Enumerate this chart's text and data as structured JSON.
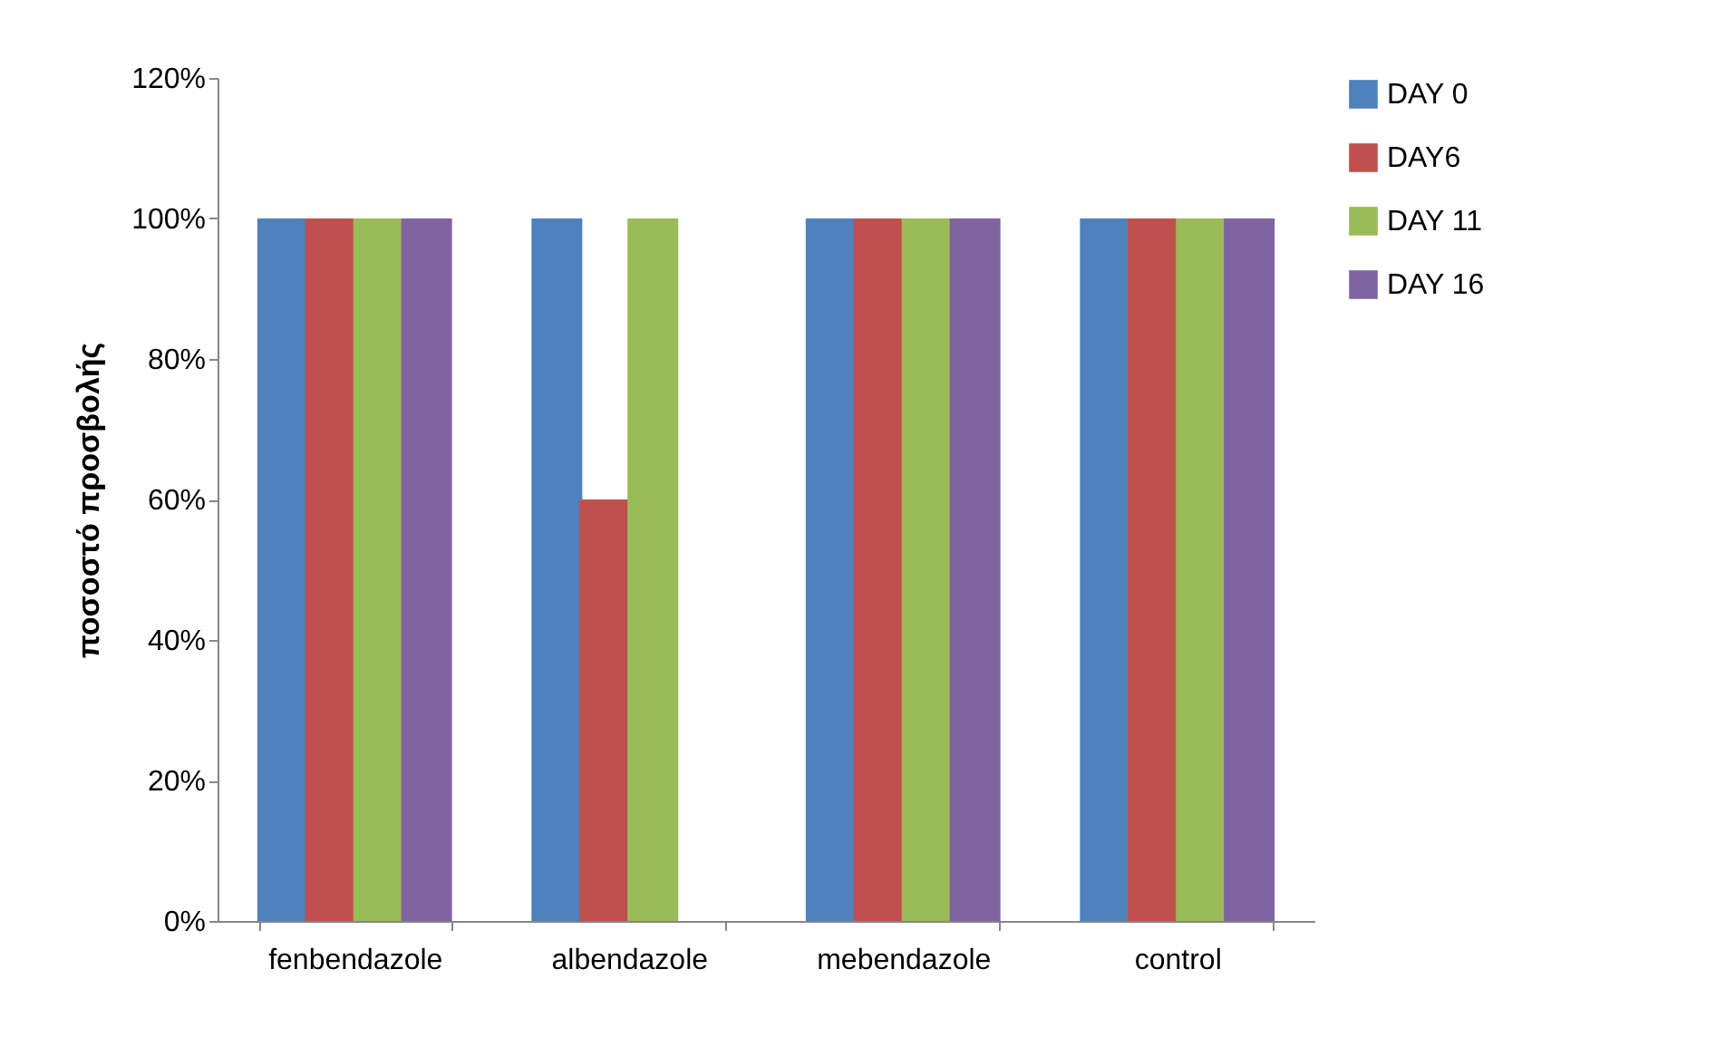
{
  "chart_data": {
    "type": "bar",
    "ylabel": "ποσοστό προσβολής",
    "categories": [
      "fenbendazole",
      "albendazole",
      "mebendazole",
      "control"
    ],
    "series": [
      {
        "name": "DAY 0",
        "color": "#4f81bd",
        "values": [
          100,
          100,
          100,
          100
        ]
      },
      {
        "name": "DAY6",
        "color": "#c0504d",
        "values": [
          100,
          60,
          100,
          100
        ]
      },
      {
        "name": "DAY 11",
        "color": "#9bbb59",
        "values": [
          100,
          100,
          100,
          100
        ]
      },
      {
        "name": "DAY 16",
        "color": "#8064a2",
        "values": [
          100,
          0,
          100,
          100
        ]
      }
    ],
    "ylim": [
      0,
      120
    ],
    "yticks": [
      {
        "value": 0,
        "label": "0%"
      },
      {
        "value": 20,
        "label": "20%"
      },
      {
        "value": 40,
        "label": "40%"
      },
      {
        "value": 60,
        "label": "60%"
      },
      {
        "value": 80,
        "label": "80%"
      },
      {
        "value": 100,
        "label": "100%"
      },
      {
        "value": 120,
        "label": "120%"
      }
    ],
    "grid": false,
    "legend": "right"
  }
}
